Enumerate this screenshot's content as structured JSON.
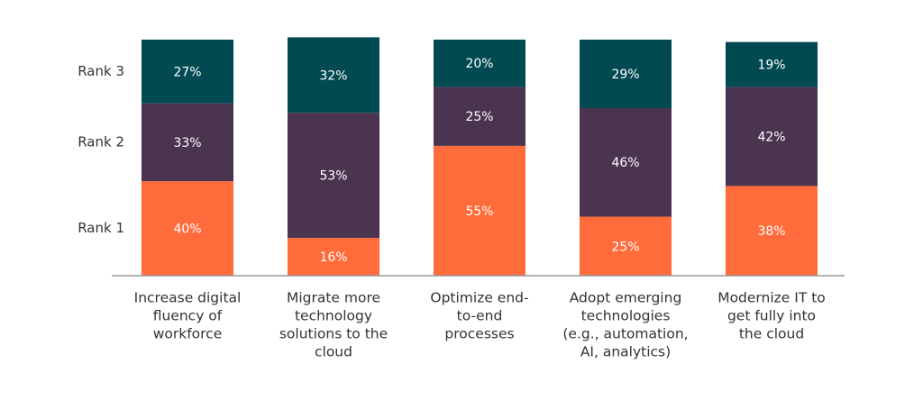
{
  "chart_data": {
    "type": "stacked_bar",
    "categories": [
      [
        "Increase digital",
        "fluency of",
        "workforce"
      ],
      [
        "Migrate more",
        "technology",
        "solutions to the",
        "cloud"
      ],
      [
        "Optimize end-",
        "to-end",
        "processes"
      ],
      [
        "Adopt emerging",
        "technologies",
        "(e.g., automation,",
        "AI, analytics)"
      ],
      [
        "Modernize IT to",
        "get fully into",
        "the cloud"
      ]
    ],
    "series": [
      {
        "name": "Rank 1",
        "color": "#ff6b3b",
        "values": [
          40,
          16,
          55,
          25,
          38
        ],
        "value_labels": [
          "40%",
          "16%",
          "55%",
          "25%",
          "38%"
        ]
      },
      {
        "name": "Rank 2",
        "color": "#4b3450",
        "values": [
          33,
          53,
          25,
          46,
          42
        ],
        "value_labels": [
          "33%",
          "53%",
          "25%",
          "46%",
          "42%"
        ]
      },
      {
        "name": "Rank 3",
        "color": "#014a52",
        "values": [
          27,
          32,
          20,
          29,
          19
        ],
        "value_labels": [
          "27%",
          "32%",
          "20%",
          "29%",
          "19%"
        ]
      }
    ],
    "ylim": [
      0,
      100
    ]
  }
}
